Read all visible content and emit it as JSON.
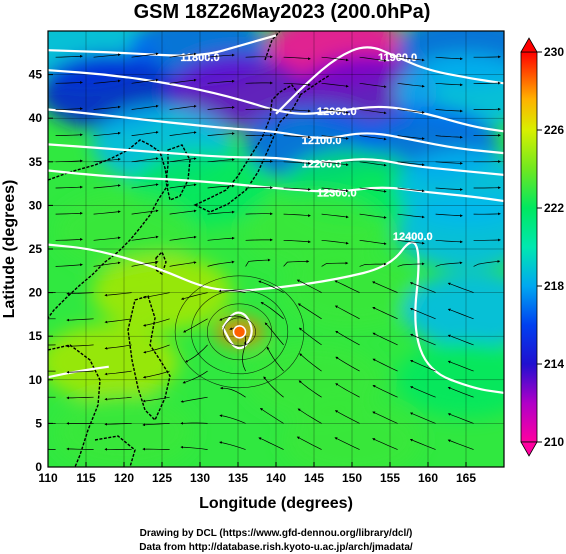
{
  "chart_data": {
    "type": "heatmap",
    "title": "GSM 18Z26May2023 (200.0hPa)",
    "xlabel": "Longitude (degrees)",
    "ylabel": "Latitude (degrees)",
    "xlim": [
      110,
      170
    ],
    "ylim": [
      0,
      50
    ],
    "x_ticks": [
      110,
      115,
      120,
      125,
      130,
      135,
      140,
      145,
      150,
      155,
      160,
      165
    ],
    "y_ticks": [
      0,
      5,
      10,
      15,
      20,
      25,
      30,
      35,
      40,
      45
    ],
    "grid": true,
    "colorbar": {
      "position": "right",
      "range": [
        210,
        230
      ],
      "ticks": [
        210,
        214,
        218,
        222,
        226,
        230
      ]
    },
    "temperature_field": [
      {
        "lat": 48,
        "lon": 115,
        "value": 218
      },
      {
        "lat": 48,
        "lon": 130,
        "value": 216
      },
      {
        "lat": 48,
        "lon": 148,
        "value": 210
      },
      {
        "lat": 48,
        "lon": 165,
        "value": 216
      },
      {
        "lat": 43,
        "lon": 118,
        "value": 213
      },
      {
        "lat": 43,
        "lon": 135,
        "value": 212
      },
      {
        "lat": 43,
        "lon": 152,
        "value": 212
      },
      {
        "lat": 43,
        "lon": 165,
        "value": 218
      },
      {
        "lat": 37,
        "lon": 125,
        "value": 218
      },
      {
        "lat": 37,
        "lon": 145,
        "value": 216
      },
      {
        "lat": 37,
        "lon": 160,
        "value": 215
      },
      {
        "lat": 32,
        "lon": 130,
        "value": 221
      },
      {
        "lat": 32,
        "lon": 150,
        "value": 220
      },
      {
        "lat": 32,
        "lon": 165,
        "value": 218
      },
      {
        "lat": 27,
        "lon": 120,
        "value": 223
      },
      {
        "lat": 27,
        "lon": 145,
        "value": 222
      },
      {
        "lat": 27,
        "lon": 165,
        "value": 218
      },
      {
        "lat": 20,
        "lon": 125,
        "value": 224
      },
      {
        "lat": 20,
        "lon": 150,
        "value": 222
      },
      {
        "lat": 18,
        "lon": 166,
        "value": 217
      },
      {
        "lat": 15.5,
        "lon": 135.2,
        "value": 229
      },
      {
        "lat": 12,
        "lon": 118,
        "value": 224
      },
      {
        "lat": 10,
        "lon": 145,
        "value": 222
      },
      {
        "lat": 10,
        "lon": 165,
        "value": 221
      },
      {
        "lat": 4,
        "lon": 120,
        "value": 223
      },
      {
        "lat": 3,
        "lon": 150,
        "value": 222
      }
    ],
    "contour_labels": [
      "11800.0",
      "11900.0",
      "12000.0",
      "12100.0",
      "12200.0",
      "12300.0",
      "12400.0"
    ],
    "contours": [
      {
        "value": 11800,
        "lons": [
          110,
          120,
          130,
          136,
          140
        ],
        "lats": [
          47.8,
          47.5,
          47.0,
          48.5,
          49.5
        ]
      },
      {
        "value": 11900,
        "lons": [
          140,
          144,
          148,
          152,
          156,
          160,
          166,
          170
        ],
        "lats": [
          40.5,
          44.0,
          47.0,
          48.5,
          47.0,
          45.5,
          44.5,
          44.0
        ]
      },
      {
        "value": 12000,
        "lons": [
          110,
          118,
          126,
          134,
          142,
          148,
          154,
          160,
          166,
          170
        ],
        "lats": [
          45.5,
          45.0,
          44.0,
          42.5,
          40.3,
          40.8,
          41.5,
          40.5,
          39.0,
          38.5
        ]
      },
      {
        "value": 12100,
        "lons": [
          110,
          118,
          126,
          134,
          140,
          146,
          152,
          158,
          164,
          170
        ],
        "lats": [
          41.0,
          40.3,
          39.5,
          38.8,
          38.5,
          37.5,
          38.5,
          37.5,
          36.5,
          36.0
        ]
      },
      {
        "value": 12200,
        "lons": [
          110,
          118,
          126,
          134,
          140,
          146,
          152,
          158,
          164,
          170
        ],
        "lats": [
          37.0,
          36.5,
          36.0,
          35.5,
          35.5,
          34.8,
          35.5,
          34.5,
          34.0,
          33.5
        ]
      },
      {
        "value": 12300,
        "lons": [
          110,
          118,
          126,
          134,
          142,
          148,
          154,
          160,
          166,
          170
        ],
        "lats": [
          34.0,
          33.3,
          33.0,
          32.5,
          31.8,
          31.5,
          32.2,
          31.5,
          31.0,
          30.5
        ]
      },
      {
        "value": 12400,
        "lons": [
          110,
          116,
          124,
          132,
          140,
          148,
          155,
          158,
          159,
          158,
          160,
          166,
          170
        ],
        "lats": [
          25.5,
          25.0,
          23.0,
          20.0,
          20.5,
          21.5,
          23.0,
          26.5,
          24.0,
          16.0,
          11.0,
          9.0,
          8.5
        ]
      },
      {
        "value": 12400,
        "lons": [
          110,
          114,
          118
        ],
        "lats": [
          10.3,
          11.0,
          11.5
        ]
      },
      {
        "value": 12450,
        "lons": [
          133.0,
          134.2,
          135.2,
          136.2,
          137.0,
          136.2,
          135.2,
          134.2,
          133.0
        ],
        "lats": [
          16.0,
          17.5,
          17.8,
          17.3,
          15.6,
          14.0,
          13.5,
          14.0,
          16.0
        ]
      }
    ],
    "wind": {
      "cyclone_center": {
        "lat": 15.5,
        "lon": 135.2
      }
    }
  },
  "credits": {
    "line1": "Drawing by DCL (https://www.gfd-dennou.org/library/dcl/)",
    "line2": "Data from http://database.rish.kyoto-u.ac.jp/arch/jmadata/"
  },
  "colors": {
    "ramp": [
      "#ff00a0",
      "#6a00d0",
      "#0018d8",
      "#0060f0",
      "#00b8f0",
      "#00e8c0",
      "#00e860",
      "#38e838",
      "#a8e800",
      "#f8f000",
      "#ff7800",
      "#ff0000"
    ]
  }
}
